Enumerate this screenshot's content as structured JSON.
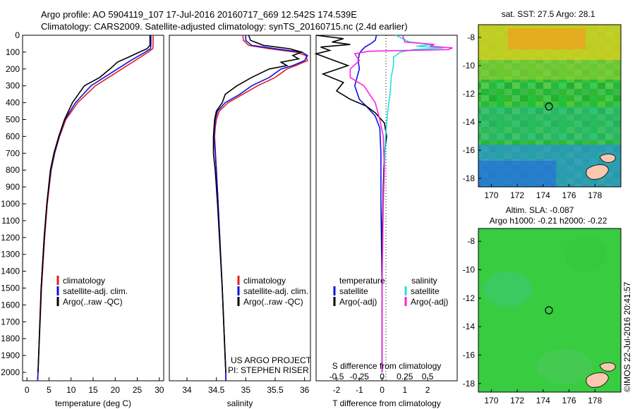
{
  "header": {
    "line1": "Argo profile: AO 5904119_107 17-Jul-2016 20160717_669 12.542S 174.539E",
    "line2": "Climatology: CARS2009. Satellite-adjusted climatology: synTS_20160715.nc (2.4d earlier)"
  },
  "colors": {
    "climatology": "#e02020",
    "satellite": "#1010e0",
    "argo": "#000000",
    "argo_salinity": "#ff20e0",
    "satellite_salinity": "#20e0e0"
  },
  "chart_data": [
    {
      "type": "line",
      "panel": "temperature",
      "xlabel": "temperature (deg C)",
      "ylabel": "",
      "xlim": [
        -1,
        31
      ],
      "ylim": [
        2050,
        0
      ],
      "xticks": [
        "0",
        "5",
        "10",
        "15",
        "20",
        "25",
        "30"
      ],
      "yticks": [
        "0",
        "100",
        "200",
        "300",
        "400",
        "500",
        "600",
        "700",
        "800",
        "900",
        "1000",
        "1100",
        "1200",
        "1300",
        "1400",
        "1500",
        "1600",
        "1700",
        "1800",
        "1900",
        "2000"
      ],
      "legend": [
        "climatology",
        "satellite-adj. clim.",
        "Argo(..raw -QC)"
      ],
      "series": [
        {
          "name": "climatology",
          "color": "#e02020",
          "depth": [
            0,
            60,
            80,
            100,
            150,
            200,
            250,
            300,
            400,
            500,
            600,
            700,
            800,
            1000,
            1200,
            1500,
            2000,
            2050
          ],
          "values": [
            28.6,
            28.6,
            28.5,
            27.5,
            24.5,
            21.5,
            18.5,
            15.5,
            11.5,
            8.8,
            7.4,
            6.3,
            5.5,
            4.6,
            4.0,
            3.3,
            2.5,
            2.4
          ]
        },
        {
          "name": "satellite-adj. clim.",
          "color": "#1010e0",
          "depth": [
            0,
            60,
            80,
            100,
            150,
            200,
            250,
            300,
            400,
            500,
            600,
            700,
            800,
            1000,
            1200,
            1500,
            2000,
            2050
          ],
          "values": [
            28.1,
            28.1,
            28.0,
            26.8,
            23.5,
            20.5,
            17.5,
            14.5,
            11.0,
            8.6,
            7.3,
            6.2,
            5.4,
            4.5,
            3.9,
            3.2,
            2.5,
            2.4
          ]
        },
        {
          "name": "Argo(..raw -QC)",
          "color": "#000000",
          "depth": [
            0,
            60,
            80,
            100,
            130,
            160,
            200,
            250,
            300,
            400,
            500,
            600,
            700,
            800,
            1000,
            1200,
            1500,
            2000
          ],
          "values": [
            27.9,
            27.9,
            27.2,
            25.5,
            23.0,
            20.5,
            18.8,
            16.5,
            13.0,
            10.3,
            8.5,
            7.2,
            6.1,
            5.3,
            4.5,
            3.9,
            3.2,
            2.5
          ]
        }
      ]
    },
    {
      "type": "line",
      "panel": "salinity",
      "xlabel": "salinity",
      "ylabel": "",
      "xlim": [
        33.7,
        36.1
      ],
      "ylim": [
        2050,
        0
      ],
      "xticks": [
        "34",
        "34.5",
        "35",
        "35.5",
        "36"
      ],
      "legend": [
        "climatology",
        "satellite-adj. clim.",
        "Argo(..raw -QC)"
      ],
      "annotation": [
        "US ARGO PROJECT",
        "PI: STEPHEN RISER"
      ],
      "series": [
        {
          "name": "climatology",
          "color": "#e02020",
          "depth": [
            0,
            30,
            60,
            80,
            100,
            120,
            150,
            180,
            200,
            250,
            300,
            350,
            400,
            450,
            500,
            550,
            600,
            800,
            1000,
            1500,
            2000,
            2050
          ],
          "values": [
            34.95,
            34.96,
            35.05,
            35.4,
            35.85,
            36.02,
            36.05,
            35.85,
            35.7,
            35.5,
            35.2,
            34.95,
            34.7,
            34.55,
            34.5,
            34.48,
            34.47,
            34.5,
            34.53,
            34.6,
            34.66,
            34.66
          ]
        },
        {
          "name": "satellite-adj. clim.",
          "color": "#1010e0",
          "depth": [
            0,
            30,
            60,
            80,
            100,
            120,
            150,
            180,
            200,
            250,
            300,
            350,
            400,
            450,
            500,
            550,
            600,
            800,
            1000,
            1500,
            2000,
            2050
          ],
          "values": [
            35.0,
            35.0,
            35.1,
            35.5,
            35.95,
            36.05,
            36.0,
            35.8,
            35.6,
            35.4,
            35.1,
            34.9,
            34.65,
            34.52,
            34.48,
            34.47,
            34.46,
            34.5,
            34.53,
            34.6,
            34.66,
            34.66
          ]
        },
        {
          "name": "Argo(..raw -QC)",
          "color": "#000000",
          "depth": [
            0,
            30,
            60,
            80,
            100,
            120,
            140,
            160,
            180,
            200,
            250,
            300,
            350,
            400,
            450,
            500,
            600,
            700,
            800,
            1000,
            1500,
            2000
          ],
          "values": [
            35.05,
            35.08,
            35.3,
            35.75,
            35.95,
            35.8,
            35.9,
            35.6,
            35.7,
            35.4,
            35.1,
            34.85,
            34.65,
            34.6,
            34.5,
            34.47,
            34.45,
            34.45,
            34.48,
            34.52,
            34.6,
            34.66
          ]
        }
      ]
    },
    {
      "type": "line",
      "panel": "difference",
      "xlabel": "T difference from climatology",
      "xlabel_top": "S difference from climatology",
      "xlim": [
        -2.9,
        3.3
      ],
      "ylim": [
        2050,
        0
      ],
      "xticks": [
        "-2",
        "-1",
        "0",
        "1",
        "2"
      ],
      "xticks_top": [
        "-0.5",
        "-0.25",
        "0",
        "0.25",
        "0.5"
      ],
      "legend_temperature_title": "temperature",
      "legend_salinity_title": "salinity",
      "legend_temperature": [
        "satellite",
        "Argo(-adj)"
      ],
      "legend_salinity": [
        "satellite",
        "Argo(-adj)"
      ],
      "series": [
        {
          "name": "satellite",
          "group": "temperature",
          "color": "#1010e0",
          "depth": [
            0,
            30,
            50,
            70,
            90,
            110,
            150,
            200,
            300,
            380,
            420,
            480,
            550,
            700,
            1000,
            1500,
            2000
          ],
          "values": [
            -0.25,
            -0.3,
            -0.5,
            -0.75,
            -0.9,
            -1.0,
            -1.05,
            -1.0,
            -1.2,
            -1.0,
            -0.7,
            -0.3,
            -0.1,
            -0.05,
            -0.05,
            0,
            0
          ]
        },
        {
          "name": "Argo(-adj)",
          "group": "temperature",
          "color": "#000000",
          "depth": [
            0,
            20,
            40,
            55,
            70,
            90,
            110,
            140,
            180,
            230,
            280,
            330,
            380,
            420,
            460,
            520,
            600,
            700,
            900,
            1200,
            1500,
            2000
          ],
          "values": [
            -2.9,
            -1.7,
            -2.2,
            -1.4,
            -2.7,
            -2.3,
            -2.9,
            -2.3,
            -1.5,
            -2.6,
            -1.7,
            -2.0,
            -1.4,
            -0.7,
            -0.3,
            0.1,
            0.2,
            0.1,
            0.05,
            0,
            0,
            0
          ]
        },
        {
          "name": "satellite",
          "group": "salinity",
          "color": "#20e0e0",
          "depth": [
            0,
            40,
            55,
            65,
            75,
            85,
            100,
            130,
            180,
            250,
            350,
            450,
            600,
            800,
            1000,
            1500,
            2000
          ],
          "values": [
            0.6,
            1.2,
            2.2,
            1.5,
            2.7,
            1.4,
            0.8,
            0.5,
            0.5,
            0.4,
            0.35,
            0.25,
            0.15,
            0.1,
            0.05,
            0,
            0
          ]
        },
        {
          "name": "Argo(-adj)",
          "group": "salinity",
          "color": "#ff20e0",
          "depth": [
            0,
            40,
            55,
            65,
            75,
            85,
            95,
            110,
            150,
            200,
            250,
            300,
            400,
            500,
            600,
            800,
            1000,
            1500,
            2000
          ],
          "values": [
            0.9,
            1.0,
            2.3,
            2.1,
            3.1,
            2.9,
            -0.6,
            -1.2,
            -1.0,
            -1.4,
            -1.4,
            -0.8,
            -0.3,
            -0.1,
            0.05,
            0.1,
            0.05,
            0,
            0
          ]
        }
      ]
    }
  ],
  "maps": {
    "sst": {
      "title": "sat. SST: 27.5 Argo: 28.1",
      "xticks": [
        "170",
        "172",
        "174",
        "176",
        "178"
      ],
      "yticks": [
        "-8",
        "-10",
        "-12",
        "-14",
        "-16",
        "-18"
      ]
    },
    "sla": {
      "title1": "Altim. SLA: -0.087",
      "title2": "Argo h1000: -0.21 h2000: -0.22",
      "xticks": [
        "170",
        "172",
        "174",
        "176",
        "178"
      ],
      "yticks": [
        "-8",
        "-10",
        "-12",
        "-14",
        "-16",
        "-18"
      ]
    }
  },
  "footer": {
    "credit": "©IMOS 22-Jul-2016 20:41:57"
  }
}
